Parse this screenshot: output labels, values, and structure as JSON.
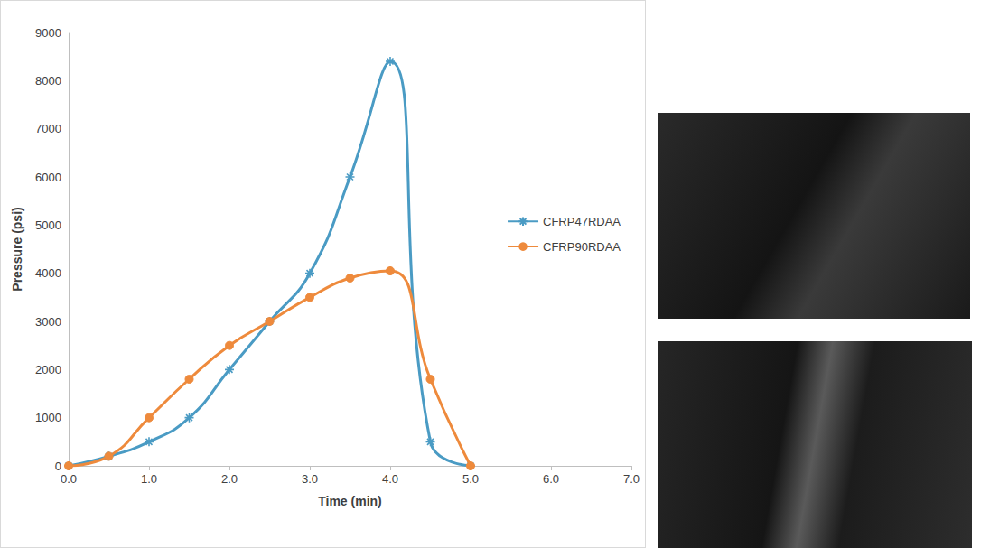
{
  "chart_data": {
    "type": "line",
    "x_label": "Time (min)",
    "y_label": "Pressure (psi)",
    "x": [
      0,
      0.5,
      1,
      1.5,
      2,
      2.5,
      3,
      3.5,
      4,
      4.5,
      5
    ],
    "series": [
      {
        "name": "CFRP47RDAA",
        "color": "#4a9bc4",
        "marker": "x",
        "line_style": "smooth",
        "values": [
          0,
          200,
          500,
          1000,
          2000,
          3000,
          4000,
          6000,
          8400,
          500,
          0
        ]
      },
      {
        "name": "CFRP90RDAA",
        "color": "#ee8a3c",
        "marker": "circle",
        "line_style": "smooth",
        "values": [
          0,
          200,
          1000,
          1800,
          2500,
          3000,
          3500,
          3900,
          4050,
          1800,
          0
        ]
      }
    ],
    "xlim": [
      0,
      7
    ],
    "xticks": [
      {
        "value": 0,
        "label": "0.0"
      },
      {
        "value": 1,
        "label": "1.0"
      },
      {
        "value": 2,
        "label": "2.0"
      },
      {
        "value": 3,
        "label": "3.0"
      },
      {
        "value": 4,
        "label": "4.0"
      },
      {
        "value": 5,
        "label": "5.0"
      },
      {
        "value": 6,
        "label": "6.0"
      },
      {
        "value": 7,
        "label": "7.0"
      }
    ],
    "ylim": [
      0,
      9000
    ],
    "yticks": [
      0,
      1000,
      2000,
      3000,
      4000,
      5000,
      6000,
      7000,
      8000,
      9000
    ],
    "grid": false,
    "legend": "right"
  }
}
